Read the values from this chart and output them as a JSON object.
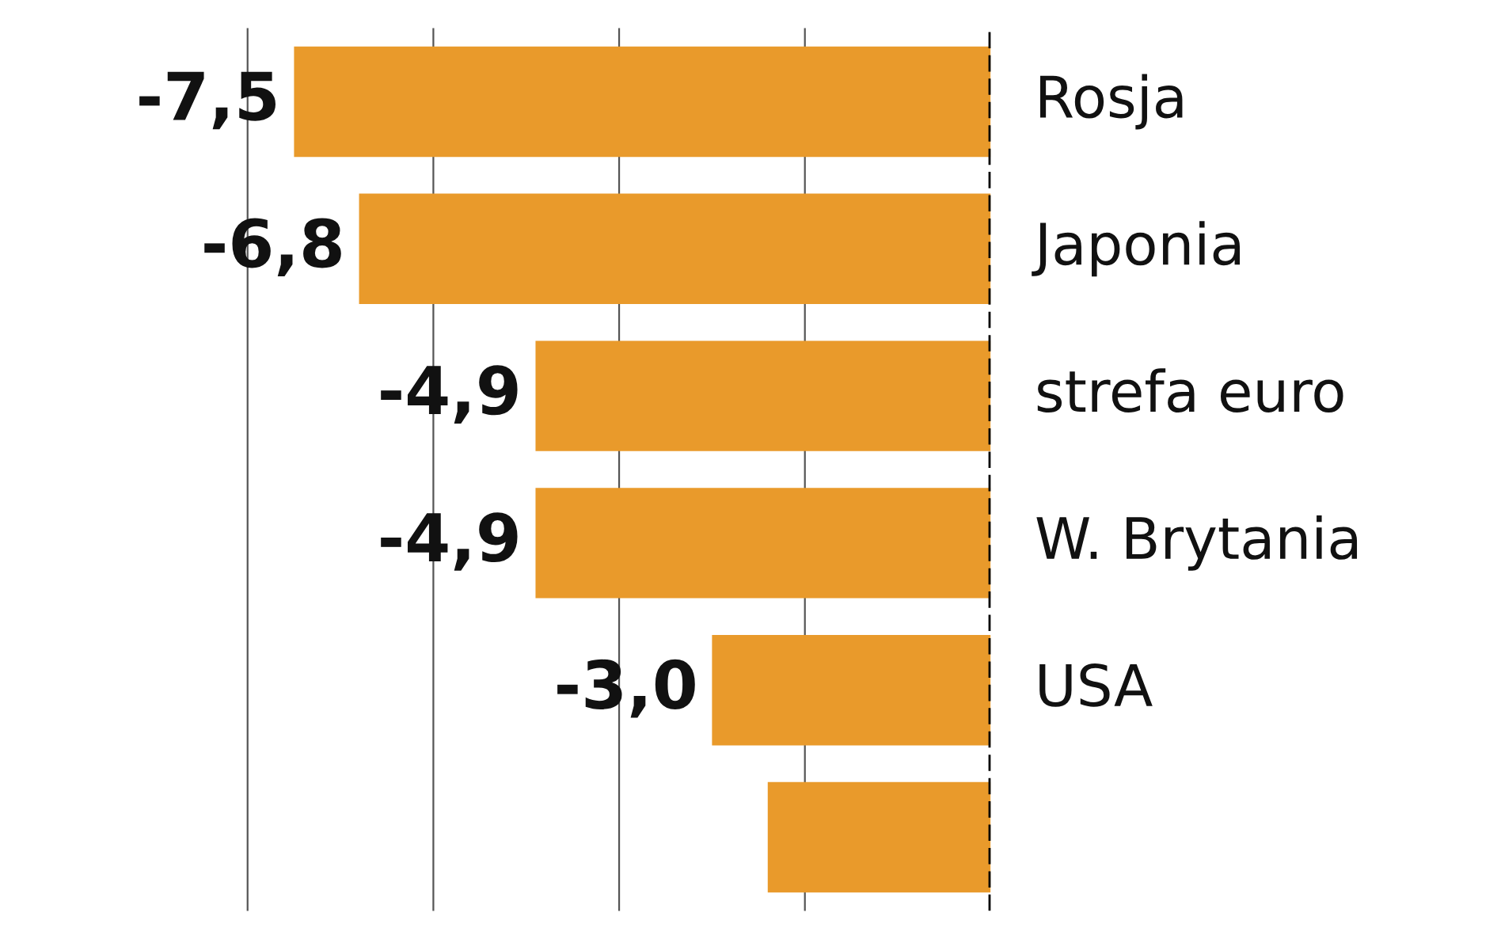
{
  "chart_data": {
    "type": "bar",
    "orientation": "horizontal",
    "categories": [
      "Rosja",
      "Japonia",
      "strefa euro",
      "W. Brytania",
      "USA",
      null
    ],
    "values": [
      -7.5,
      -6.8,
      -4.9,
      -4.9,
      -3.0,
      -2.4
    ],
    "value_labels": [
      "-7,5",
      "-6,8",
      "-4,9",
      "-4,9",
      "-3,0",
      null
    ],
    "color": "#e99a2b",
    "xticks": [
      {
        "value": -8,
        "label": null
      },
      {
        "value": -6,
        "label": null
      },
      {
        "value": -4,
        "label": null
      },
      {
        "value": -2,
        "label": null
      }
    ],
    "grid": "x",
    "ref_lines": [
      {
        "axis": "x",
        "value": 0,
        "label": null,
        "color": "#000000",
        "line_style": "dashed"
      }
    ]
  }
}
